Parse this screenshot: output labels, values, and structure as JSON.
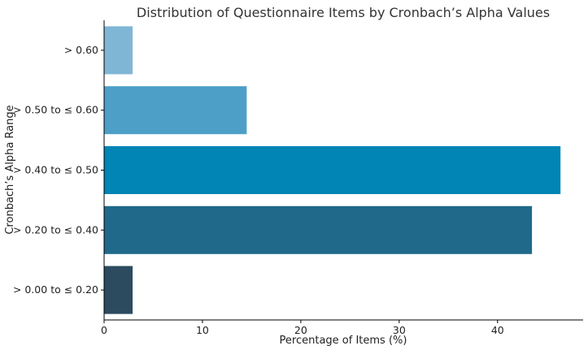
{
  "chart_data": {
    "type": "bar",
    "orientation": "horizontal",
    "title": "Distribution of Questionnaire Items by Cronbach’s Alpha Values",
    "xlabel": "Percentage of Items (%)",
    "ylabel": "Cronbach’s Alpha Range",
    "categories": [
      "> 0.00 to ≤ 0.20",
      "> 0.20 to ≤ 0.40",
      "> 0.40 to ≤ 0.50",
      "> 0.50 to ≤ 0.60",
      "> 0.60"
    ],
    "values": [
      2.9,
      43.5,
      46.4,
      14.5,
      2.9
    ],
    "colors": [
      "#2d4b5e",
      "#20698a",
      "#0085b5",
      "#4d9fc7",
      "#7fb6d5"
    ],
    "xlim": [
      0,
      48.7
    ],
    "xticks": [
      0,
      10,
      20,
      30,
      40
    ],
    "grid": false,
    "legend": "none"
  }
}
